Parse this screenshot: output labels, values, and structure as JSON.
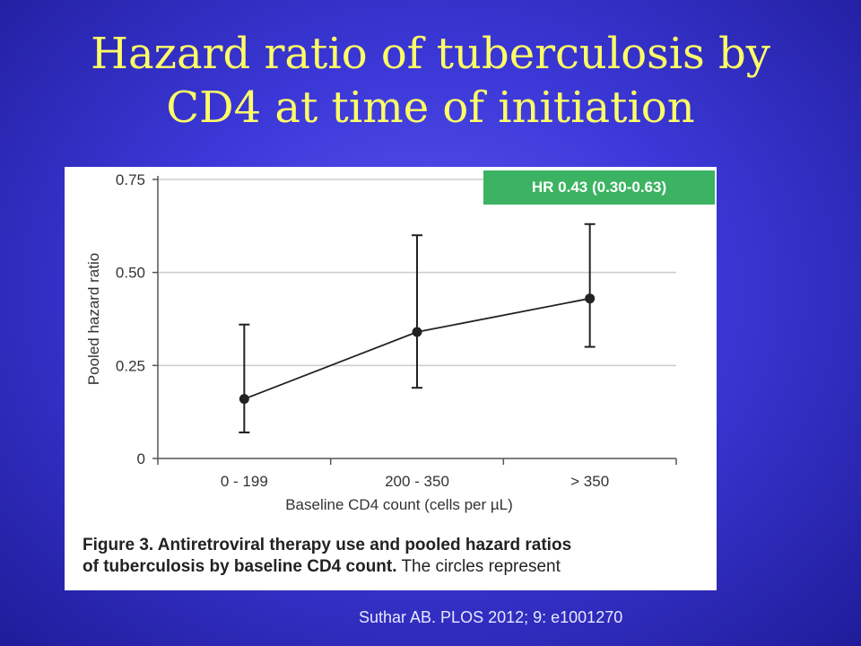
{
  "slide": {
    "title_line1": "Hazard ratio of tuberculosis by",
    "title_line2": "CD4 at time of initiation",
    "badge": "HR 0.43 (0.30-0.63)",
    "caption_bold1": "Figure 3. Antiretroviral therapy use and pooled hazard ratios",
    "caption_bold2": "of tuberculosis by baseline CD4 count.",
    "caption_rest": " The circles represent",
    "source": "Suthar AB. PLOS 2012; 9: e1001270"
  },
  "chart_data": {
    "type": "line",
    "categories": [
      "0 - 199",
      "200 - 350",
      "> 350"
    ],
    "series": [
      {
        "values": [
          0.16,
          0.34,
          0.43
        ],
        "lower": [
          0.07,
          0.19,
          0.3
        ],
        "upper": [
          0.36,
          0.6,
          0.63
        ]
      }
    ],
    "xlabel": "Baseline CD4 count (cells per µL)",
    "ylabel": "Pooled hazard ratio",
    "ylim": [
      0,
      0.75
    ],
    "yticks": [
      0,
      0.25,
      0.5,
      0.75
    ],
    "ytick_labels": [
      "0",
      "0.25",
      "0.50",
      "0.75"
    ],
    "grid": true,
    "colors": {
      "line": "#222222",
      "grid": "#cccccc"
    }
  }
}
